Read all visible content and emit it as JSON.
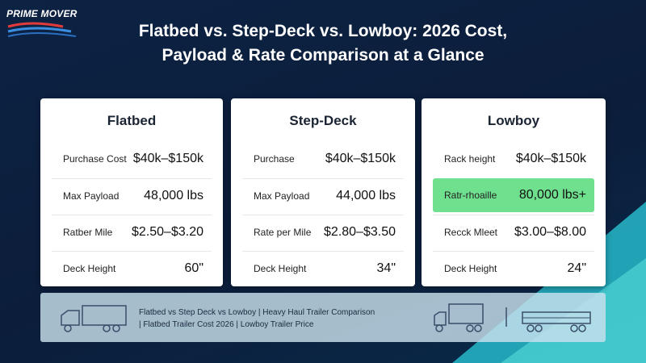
{
  "header": {
    "logo": "PRIME MOVER",
    "title_line1": "Flatbed vs. Step-Deck vs. Lowboy: 2026 Cost,",
    "title_line2": "Payload & Rate Comparison at a Glance"
  },
  "cards": [
    {
      "title": "Flatbed",
      "rows": [
        {
          "label": "Purchase Cost",
          "value": "$40k–$150k"
        },
        {
          "label": "Max Payload",
          "value": "48,000 lbs"
        },
        {
          "label": "Ratber Mile",
          "value": "$2.50–$3.20"
        },
        {
          "label": "Deck Height",
          "value": "60\""
        }
      ]
    },
    {
      "title": "Step-Deck",
      "rows": [
        {
          "label": "Purchase",
          "value": "$40k–$150k"
        },
        {
          "label": "Max Payload",
          "value": "44,000 lbs"
        },
        {
          "label": "Rate per Mile",
          "value": "$2.80–$3.50"
        },
        {
          "label": "Deck Height",
          "value": "34\""
        }
      ]
    },
    {
      "title": "Lowboy",
      "rows": [
        {
          "label": "Rack height",
          "value": "$40k–$150k"
        },
        {
          "label": "Ratr-rhoaille",
          "value": "80,000 lbs+",
          "highlight": true
        },
        {
          "label": "Recck Mleet",
          "value": "$3.00–$8.00"
        },
        {
          "label": "Deck Height",
          "value": "24\""
        }
      ]
    }
  ],
  "footer": {
    "line1": "Flatbed vs Step Deck vs Lowboy | Heavy Haul Trailer Comparison",
    "line2": "| Flatbed Trailer Cost 2026 | Lowboy Trailer Price"
  }
}
